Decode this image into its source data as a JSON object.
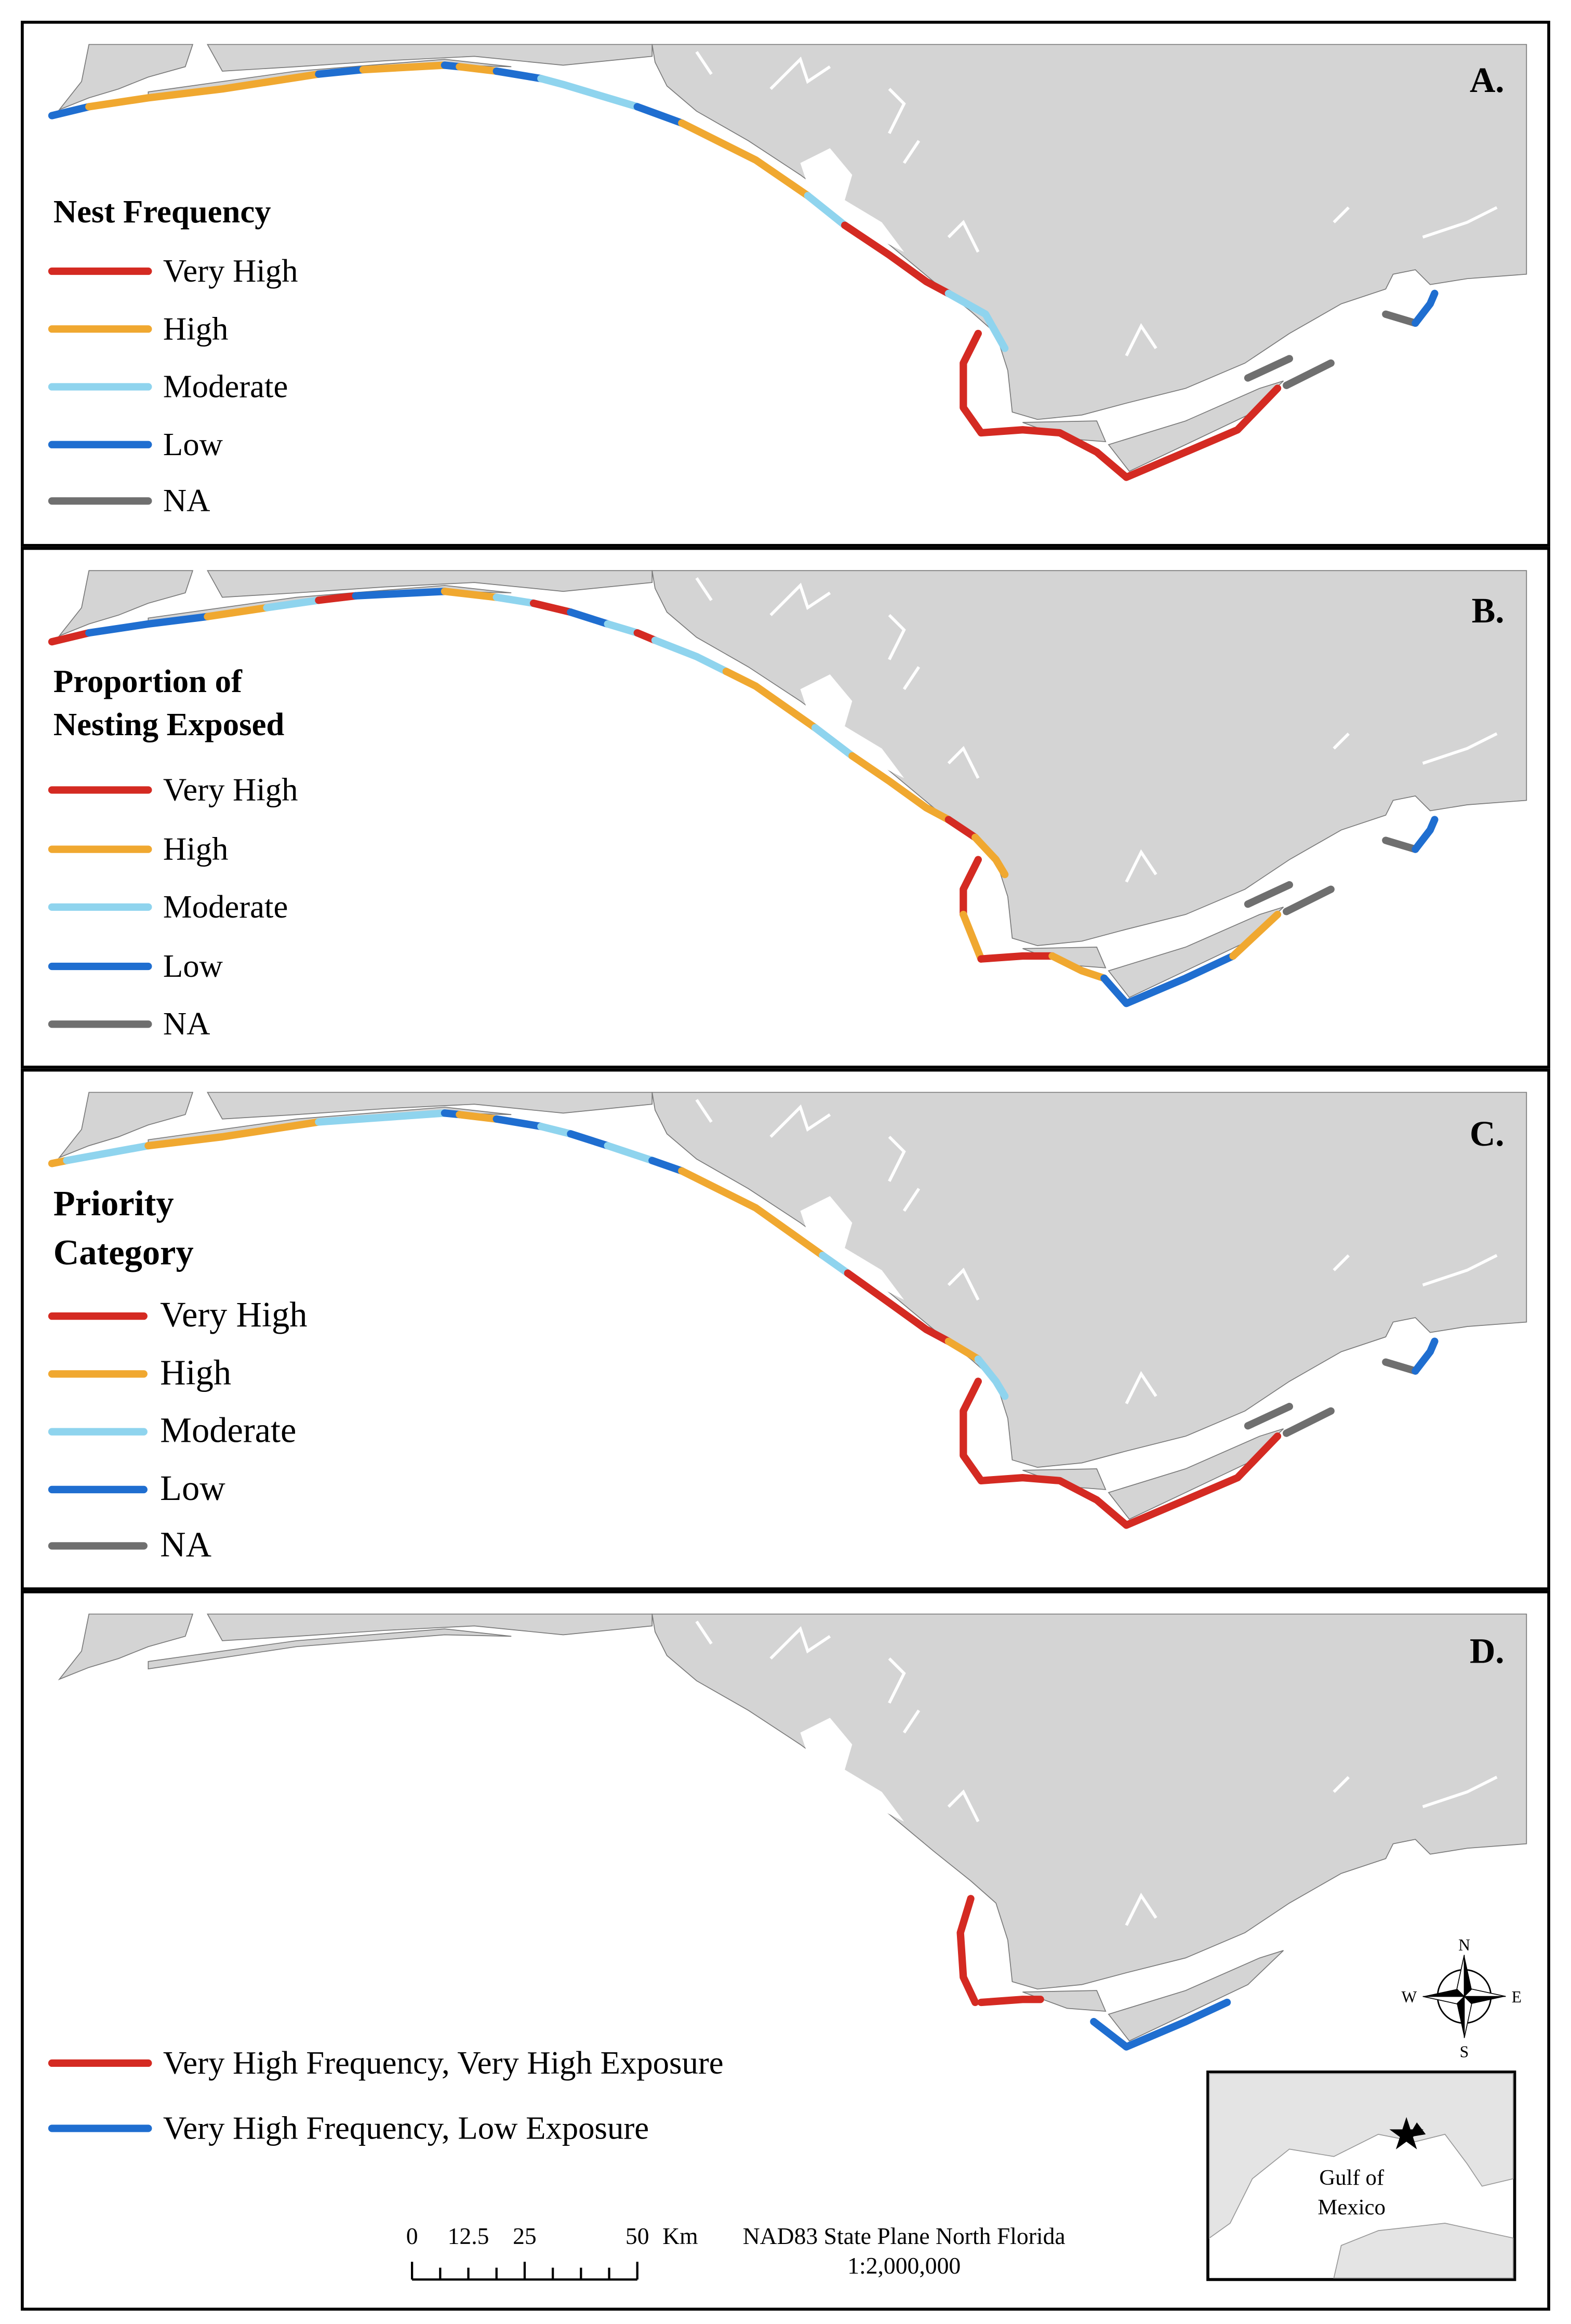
{
  "panels": [
    {
      "label": "A.",
      "legend_title": [
        "Nest Frequency"
      ],
      "legend": [
        {
          "label": "Very High",
          "color": "#d42a22"
        },
        {
          "label": "High",
          "color": "#f0a830"
        },
        {
          "label": "Moderate",
          "color": "#8fd4ee"
        },
        {
          "label": "Low",
          "color": "#1f6ed0"
        },
        {
          "label": "NA",
          "color": "#6f6f6f"
        }
      ]
    },
    {
      "label": "B.",
      "legend_title": [
        "Proportion of",
        "Nesting Exposed"
      ],
      "legend": [
        {
          "label": "Very High",
          "color": "#d42a22"
        },
        {
          "label": "High",
          "color": "#f0a830"
        },
        {
          "label": "Moderate",
          "color": "#8fd4ee"
        },
        {
          "label": "Low",
          "color": "#1f6ed0"
        },
        {
          "label": "NA",
          "color": "#6f6f6f"
        }
      ]
    },
    {
      "label": "C.",
      "legend_title": [
        "Priority",
        "Category"
      ],
      "legend": [
        {
          "label": "Very High",
          "color": "#d42a22"
        },
        {
          "label": "High",
          "color": "#f0a830"
        },
        {
          "label": "Moderate",
          "color": "#8fd4ee"
        },
        {
          "label": "Low",
          "color": "#1f6ed0"
        },
        {
          "label": "NA",
          "color": "#6f6f6f"
        }
      ]
    },
    {
      "label": "D.",
      "legend_title": [],
      "legend": [
        {
          "label": "Very High Frequency, Very High Exposure",
          "color": "#d42a22"
        },
        {
          "label": "Very High Frequency, Low Exposure",
          "color": "#1f6ed0"
        }
      ]
    }
  ],
  "scale_bar": {
    "ticks": [
      "0",
      "12.5",
      "25",
      "50"
    ],
    "unit": "Km"
  },
  "projection": "NAD83 State Plane North Florida",
  "scale": "1:2,000,000",
  "compass": {
    "n": "N",
    "s": "S",
    "w": "W",
    "e": "E"
  },
  "inset": [
    "Gulf of",
    "Mexico"
  ]
}
